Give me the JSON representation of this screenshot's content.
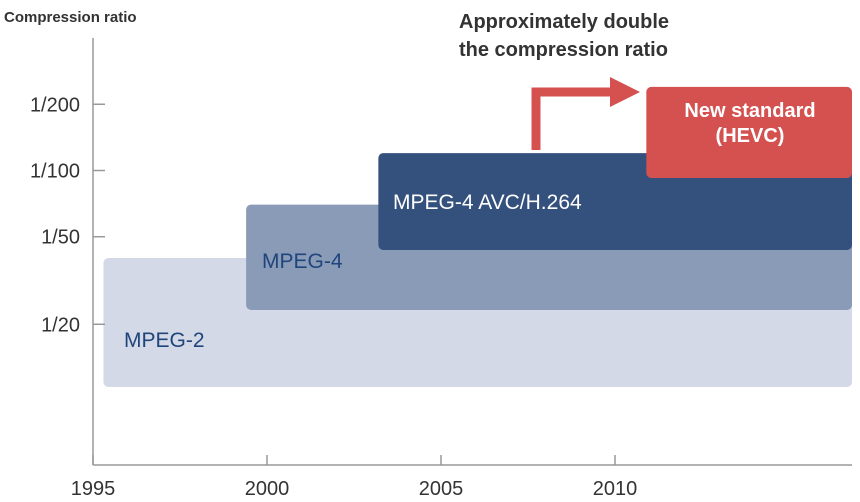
{
  "chart_data": {
    "type": "area",
    "title": "",
    "xlabel": "",
    "ylabel": "Compression ratio",
    "x_ticks": [
      "1995",
      "2000",
      "2005",
      "2010"
    ],
    "y_ticks": [
      "1/20",
      "1/50",
      "1/100",
      "1/200"
    ],
    "grid": false,
    "series": [
      {
        "name": "MPEG-2",
        "start_year": 1995.3,
        "ratio": "1/40",
        "color": "#d3d9e6",
        "label_color": "#20457c"
      },
      {
        "name": "MPEG-4",
        "start_year": 1999.4,
        "ratio": "1/70",
        "color": "#8a9bb8",
        "label_color": "#20457c"
      },
      {
        "name": "MPEG-4 AVC/H.264",
        "start_year": 2003.2,
        "ratio": "1/120",
        "color": "#34507d",
        "label_color": "#ffffff"
      },
      {
        "name": "New standard\n(HEVC)",
        "start_year": 2010.9,
        "ratio": "1/240",
        "color": "#d45150",
        "label_color": "#ffffff"
      }
    ],
    "annotation": {
      "lines": [
        "Approximately double",
        "the compression ratio"
      ],
      "arrow_color": "#d45150"
    }
  }
}
